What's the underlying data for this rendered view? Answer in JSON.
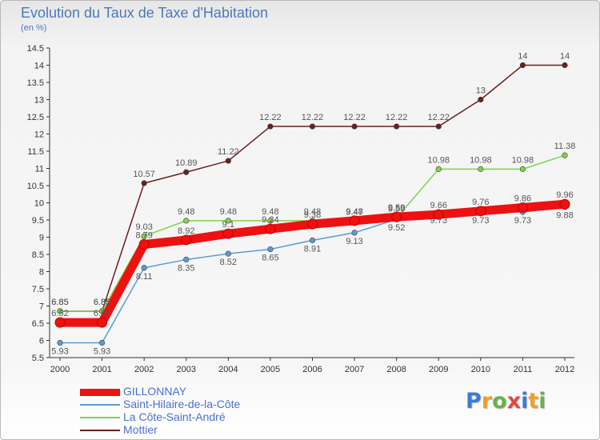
{
  "chart_data": {
    "type": "line",
    "title": "Evolution du Taux de Taxe d'Habitation",
    "subtitle": "(en %)",
    "x": [
      "2000",
      "2001",
      "2002",
      "2003",
      "2004",
      "2005",
      "2006",
      "2007",
      "2008",
      "2009",
      "2010",
      "2011",
      "2012"
    ],
    "ylim": [
      5.5,
      14.5
    ],
    "yticks": [
      "5.5",
      "6",
      "6.5",
      "7",
      "7.5",
      "8",
      "8.5",
      "9",
      "9.5",
      "10",
      "10.5",
      "11",
      "11.5",
      "12",
      "12.5",
      "13",
      "13.5",
      "14",
      "14.5"
    ],
    "grid": false,
    "legend_position": "bottom-left",
    "series": [
      {
        "name": "GILLONNAY",
        "color": "#ee1111",
        "values": [
          6.52,
          6.52,
          8.79,
          8.92,
          9.1,
          9.24,
          9.38,
          9.48,
          9.59,
          9.66,
          9.76,
          9.86,
          9.96
        ],
        "labels": [
          "6.52",
          "6.52",
          "8.79",
          "8.92",
          "9.1",
          "9.24",
          "9.38",
          "9.48",
          "9.59",
          "9.66",
          "9.76",
          "9.86",
          "9.96"
        ]
      },
      {
        "name": "Saint-Hilaire-de-la-Côte",
        "color": "#5b9bd5",
        "values": [
          5.93,
          5.93,
          8.11,
          8.35,
          8.52,
          8.65,
          8.91,
          9.13,
          9.52,
          9.73,
          9.73,
          9.73,
          9.88
        ],
        "labels": [
          "5.93",
          "5.93",
          "8.11",
          "8.35",
          "8.52",
          "8.65",
          "8.91",
          "9.13",
          "9.52",
          "9.73",
          "9.73",
          "9.73",
          "9.88"
        ]
      },
      {
        "name": "La Côte-Saint-André",
        "color": "#7fd34a",
        "values": [
          6.85,
          6.85,
          9.03,
          9.48,
          9.48,
          9.48,
          9.48,
          9.47,
          9.56,
          10.98,
          10.98,
          10.98,
          11.38
        ],
        "labels": [
          "6.85",
          "6.85",
          "9.03",
          "9.48",
          "9.48",
          "9.48",
          "9.48",
          "9.47",
          "9.56",
          "10.98",
          "10.98",
          "10.98",
          "11.38"
        ]
      },
      {
        "name": "Mottier",
        "color": "#6b1e1e",
        "values": [
          6.85,
          6.85,
          10.57,
          10.89,
          11.22,
          12.22,
          12.22,
          12.22,
          12.22,
          12.22,
          13,
          14,
          14
        ],
        "labels": [
          "6.85",
          "6.85",
          "10.57",
          "10.89",
          "11.22",
          "12.22",
          "12.22",
          "12.22",
          "12.22",
          "12.22",
          "13",
          "14",
          "14"
        ]
      }
    ]
  },
  "logo": {
    "text": "Proxiti",
    "letter_colors": [
      "#3a7bd5",
      "#f0a020",
      "#6ab04c",
      "#e04848",
      "#3a7bd5",
      "#f0a020",
      "#6ab04c"
    ]
  }
}
